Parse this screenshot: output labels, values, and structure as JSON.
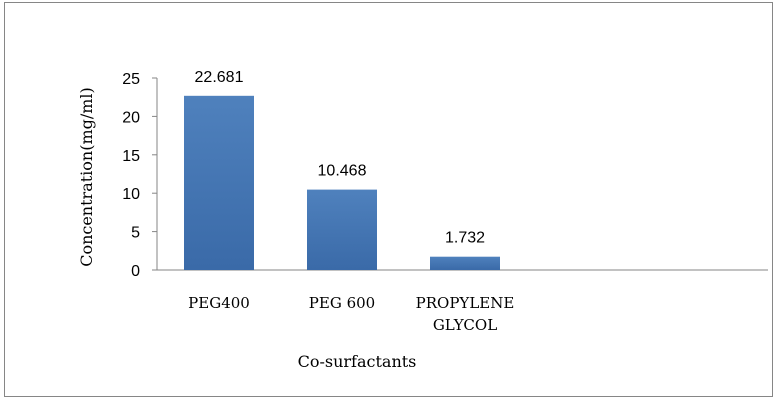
{
  "chart_data": {
    "type": "bar",
    "categories": [
      "PEG400",
      "PEG 600",
      "PROPYLENE GLYCOL"
    ],
    "category_lines": [
      [
        "PEG400"
      ],
      [
        "PEG 600"
      ],
      [
        "PROPYLENE",
        "GLYCOL"
      ]
    ],
    "values": [
      22.681,
      10.468,
      1.732
    ],
    "data_labels": [
      "22.681",
      "10.468",
      "1.732"
    ],
    "xlabel": "Co-surfactants",
    "ylabel": "Concentration(mg/ml)",
    "ylim": [
      0,
      25
    ],
    "yticks": [
      0,
      5,
      10,
      15,
      20,
      25
    ],
    "grid": false,
    "legend": "none",
    "bar_color_top": "#4f81bd",
    "bar_color_bottom": "#3a6aa8"
  }
}
